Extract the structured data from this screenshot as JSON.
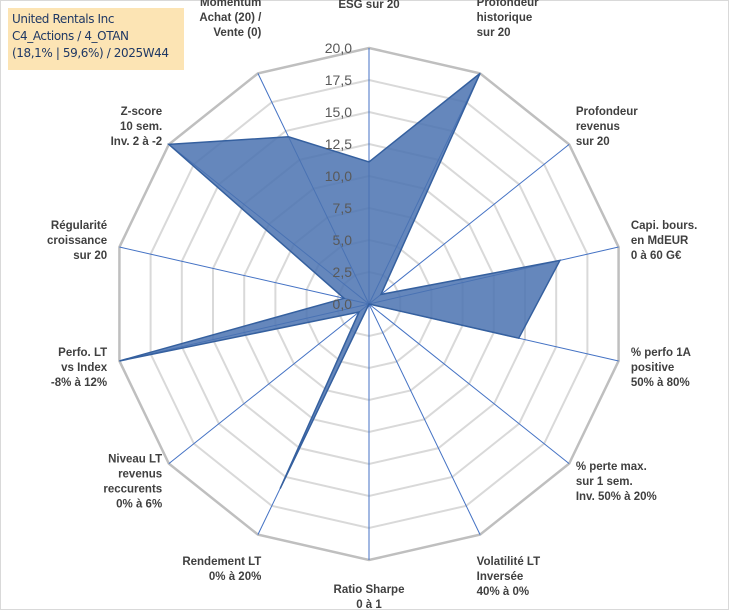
{
  "info": {
    "line1": "United Rentals Inc",
    "line2": "C4_Actions / 4_OTAN",
    "line3": "(18,1% | 59,6%) / 2025W44"
  },
  "chart_data": {
    "type": "radar",
    "title": "",
    "rmin": 0,
    "rmax": 20,
    "tick_step": 2.5,
    "tick_labels": [
      "0,0",
      "2,5",
      "5,0",
      "7,5",
      "10,0",
      "12,5",
      "15,0",
      "17,5",
      "20,0"
    ],
    "axes": [
      {
        "label": [
          "Note",
          "ESG sur 20"
        ],
        "value": 11.1
      },
      {
        "label": [
          "Profondeur",
          "historique",
          "sur 20"
        ],
        "value": 20.0
      },
      {
        "label": [
          "Profondeur",
          "revenus",
          "sur 20"
        ],
        "value": 1.2
      },
      {
        "label": [
          "Capi. bours.",
          "en MdEUR",
          "0 à 60 G€"
        ],
        "value": 15.3
      },
      {
        "label": [
          "% perfo 1A",
          "positive",
          "50% à 80%"
        ],
        "value": 12.0
      },
      {
        "label": [
          "% perte max.",
          "sur 1 sem.",
          "Inv. 50% à 20%"
        ],
        "value": 0.0
      },
      {
        "label": [
          "Volatilité LT",
          "Inversée",
          "40% à 0%"
        ],
        "value": 0.0
      },
      {
        "label": [
          "Ratio Sharpe",
          "0 à 1"
        ],
        "value": 0.0
      },
      {
        "label": [
          "Rendement LT",
          "0% à 20%"
        ],
        "value": 16.0
      },
      {
        "label": [
          "Niveau LT",
          "revenus",
          "reccurents",
          "0% à 6%"
        ],
        "value": 1.0
      },
      {
        "label": [
          "Perfo. LT",
          "vs Index",
          "-8% à 12%"
        ],
        "value": 20.0
      },
      {
        "label": [
          "Régularité",
          "croissance",
          "sur 20"
        ],
        "value": 2.0
      },
      {
        "label": [
          "Z-score",
          "10 sem.",
          "Inv. 2 à -2"
        ],
        "value": 20.0
      },
      {
        "label": [
          "Momentum",
          "Achat (20) /",
          "Vente (0)"
        ],
        "value": 14.5
      }
    ],
    "series": [
      {
        "name": "United Rentals Inc",
        "color": "#4a72b0"
      }
    ],
    "grid": true
  }
}
